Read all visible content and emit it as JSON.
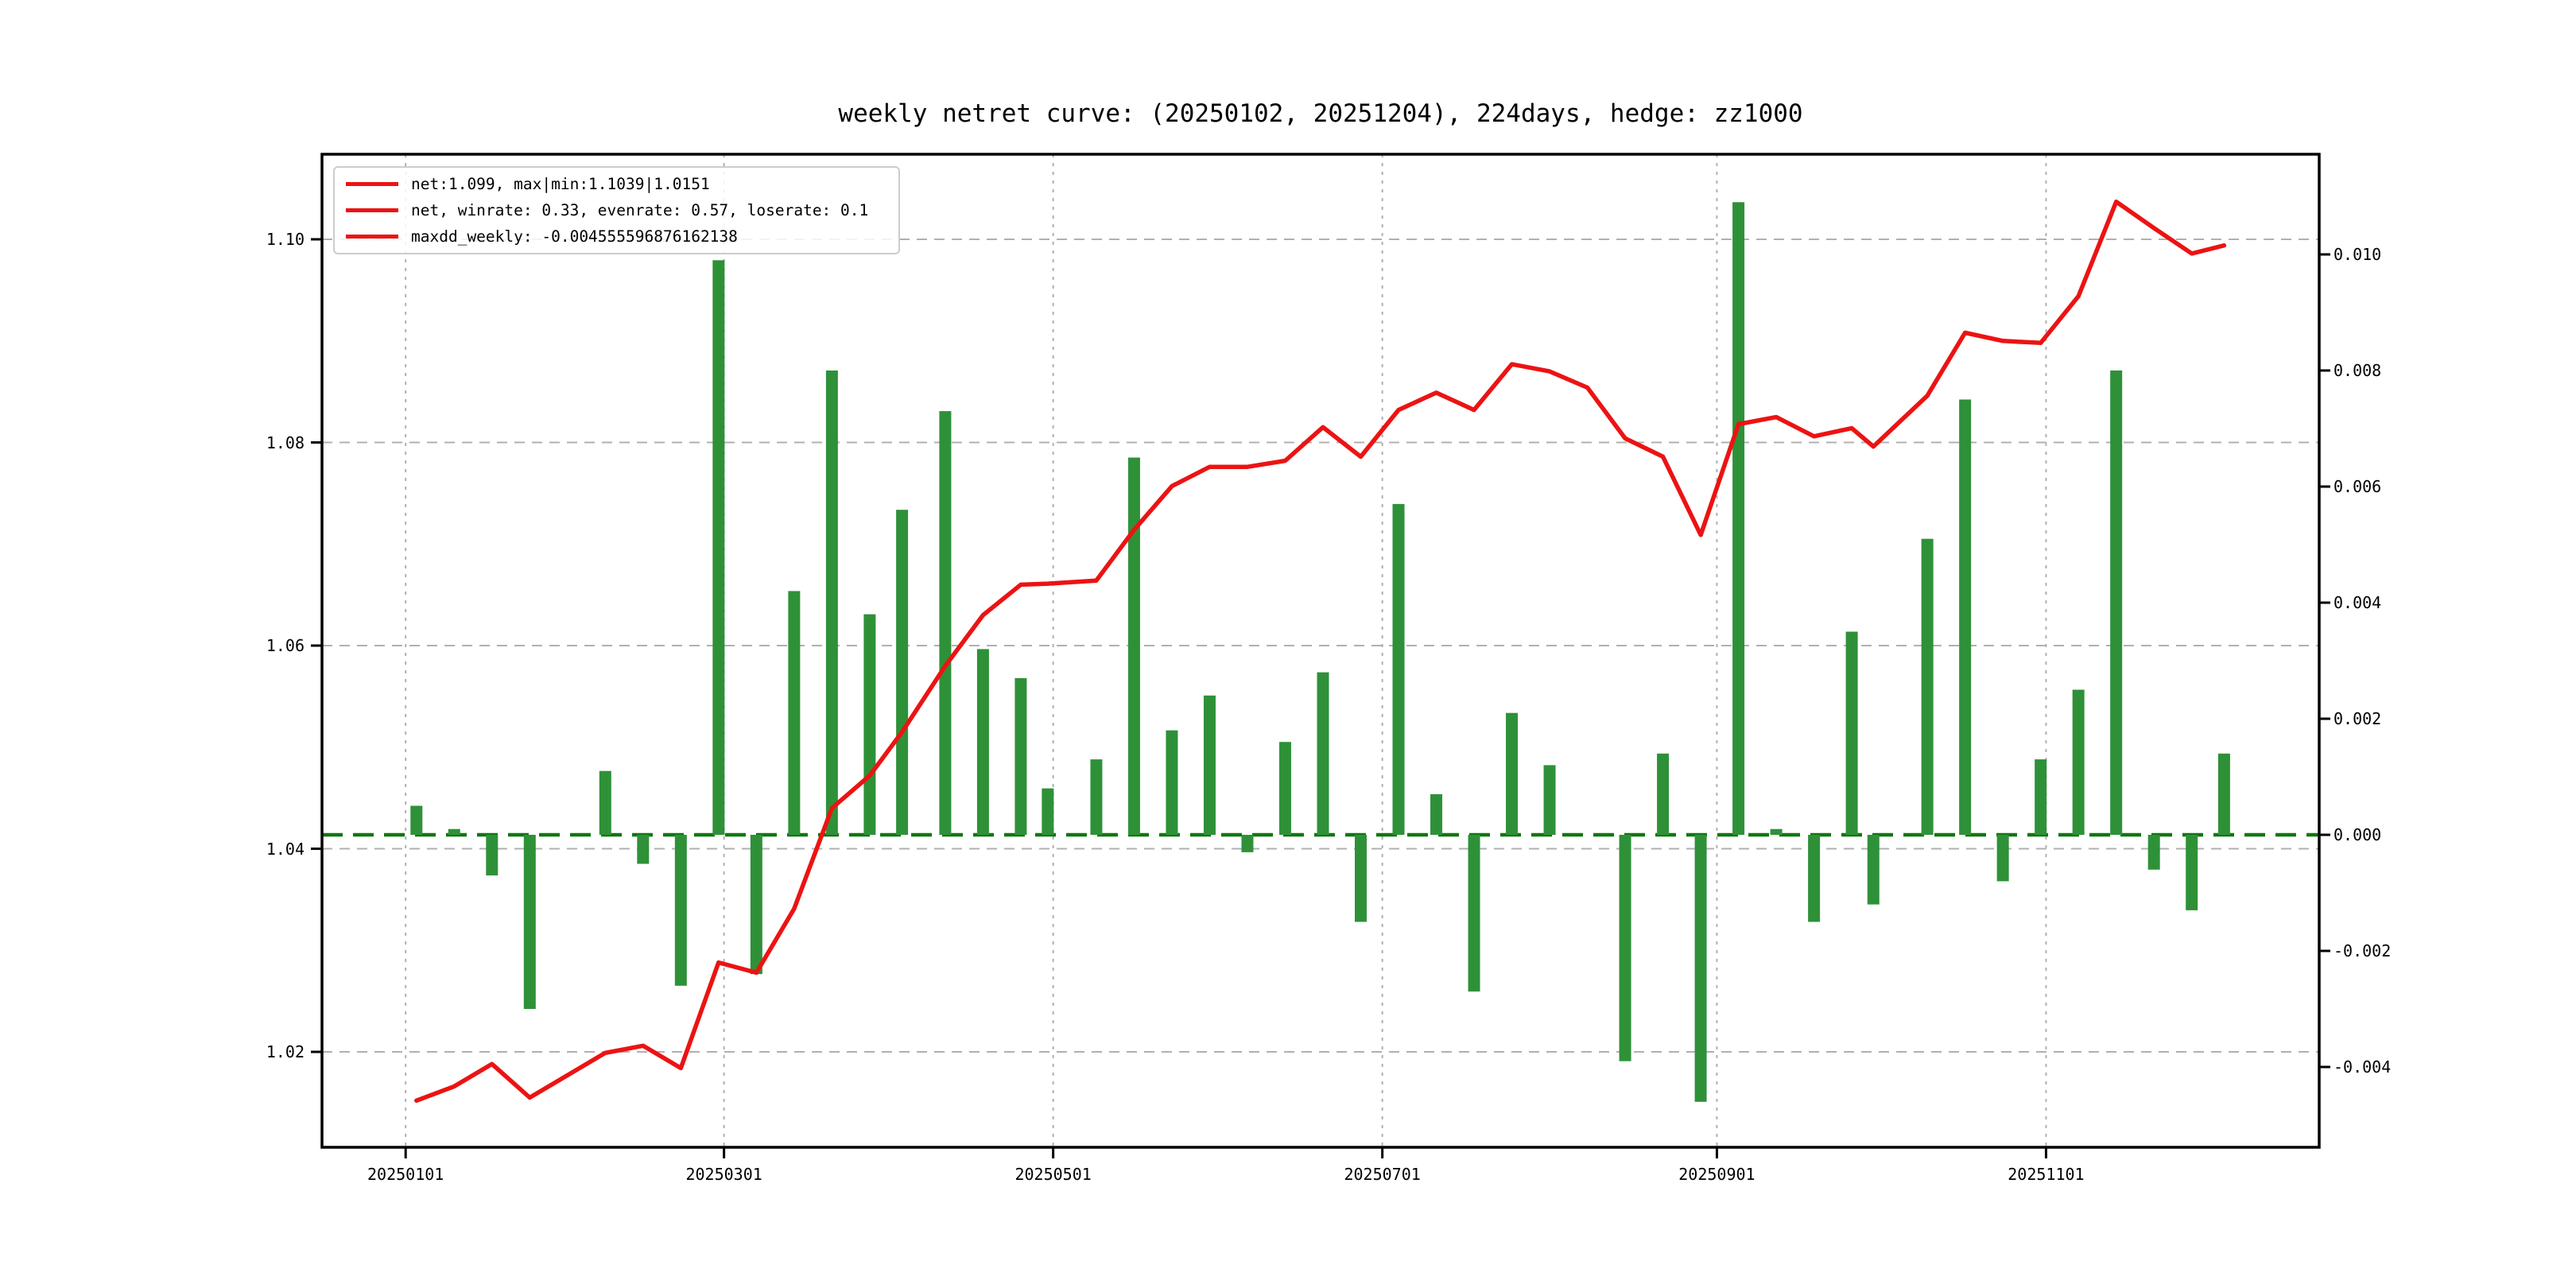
{
  "title": "weekly netret curve: (20250102, 20251204), 224days, hedge: zz1000",
  "legend": {
    "entries": [
      "net:1.099, max|min:1.1039|1.0151",
      "net, winrate: 0.33, evenrate: 0.57, loserate: 0.1",
      "maxdd_weekly: -0.004555596876162138"
    ]
  },
  "stats": {
    "net_end": 1.099,
    "net_max": 1.1039,
    "net_min": 1.0151,
    "winrate": 0.33,
    "evenrate": 0.57,
    "loserate": 0.1,
    "maxdd_weekly": -0.004555596876162138,
    "days": "224days",
    "hedge": "zz1000",
    "range_start": "20250102",
    "range_end": "20251204"
  },
  "colors": {
    "net_line": "#ec1313",
    "return_bar": "#2e9138",
    "zero_line": "#0e780e",
    "grid": "#b0b0b0",
    "spine": "#000000",
    "background": "#ffffff"
  },
  "chart_data": {
    "type": "line+bar",
    "title": "weekly netret curve: (20250102, 20251204), 224days, hedge: zz1000",
    "x": [
      "20250103",
      "20250110",
      "20250117",
      "20250124",
      "20250207",
      "20250214",
      "20250221",
      "20250228",
      "20250307",
      "20250314",
      "20250321",
      "20250328",
      "20250403",
      "20250411",
      "20250418",
      "20250425",
      "20250430",
      "20250509",
      "20250516",
      "20250523",
      "20250530",
      "20250606",
      "20250613",
      "20250620",
      "20250627",
      "20250704",
      "20250711",
      "20250718",
      "20250725",
      "20250801",
      "20250808",
      "20250815",
      "20250822",
      "20250829",
      "20250905",
      "20250912",
      "20250919",
      "20250926",
      "20250930",
      "20251010",
      "20251017",
      "20251024",
      "20251031",
      "20251107",
      "20251114",
      "20251121",
      "20251128",
      "20251204"
    ],
    "series": [
      {
        "name": "net",
        "type": "line",
        "axis": "left",
        "color_key": "net_line",
        "values": [
          1.0152,
          1.0166,
          1.0188,
          1.0155,
          1.0199,
          1.0206,
          1.0184,
          1.0288,
          1.0278,
          1.0341,
          1.044,
          1.0472,
          1.0515,
          1.058,
          1.063,
          1.066,
          1.0661,
          1.0664,
          1.0714,
          1.0757,
          1.0776,
          1.0776,
          1.0782,
          1.0815,
          1.0786,
          1.0832,
          1.0849,
          1.0832,
          1.0877,
          1.087,
          1.0854,
          1.0804,
          1.0786,
          1.0709,
          1.0818,
          1.0825,
          1.0806,
          1.0814,
          1.0796,
          1.0846,
          1.0908,
          1.09,
          1.0898,
          1.0944,
          1.1037,
          1.1011,
          1.0986,
          1.0994
        ]
      },
      {
        "name": "weekly_return",
        "type": "bar",
        "axis": "right",
        "color_key": "return_bar",
        "values": [
          0.0005,
          0.0001,
          -0.0007,
          -0.003,
          0.0011,
          -0.0005,
          -0.0026,
          0.0099,
          -0.0024,
          0.0042,
          0.008,
          0.0038,
          0.0056,
          0.0073,
          0.0032,
          0.0027,
          0.0008,
          0.0013,
          0.0065,
          0.0018,
          0.0024,
          -0.0003,
          0.0016,
          0.0028,
          -0.0015,
          0.0057,
          0.0007,
          -0.0027,
          0.0021,
          0.0012,
          0.0,
          -0.0039,
          0.0014,
          -0.0046,
          0.0109,
          0.0001,
          -0.0015,
          0.0035,
          -0.0012,
          0.0051,
          0.0075,
          -0.0008,
          0.0013,
          0.0025,
          0.008,
          -0.0006,
          -0.0013,
          0.0014
        ]
      }
    ],
    "left_axis": {
      "ticks": [
        1.02,
        1.04,
        1.06,
        1.08,
        1.1
      ],
      "labels": [
        "1.02",
        "1.04",
        "1.06",
        "1.08",
        "1.10"
      ]
    },
    "right_axis": {
      "ticks": [
        0.01,
        0.008,
        0.006,
        0.004,
        0.002,
        0.0,
        -0.002,
        -0.004
      ],
      "labels": [
        "0.010",
        "0.008",
        "0.006",
        "0.004",
        "0.002",
        "0.000",
        "-0.002",
        "-0.004"
      ]
    },
    "x_axis": {
      "tick_dates": [
        "20250101",
        "20250301",
        "20250501",
        "20250701",
        "20250901",
        "20251101"
      ],
      "labels": [
        "20250101",
        "20250301",
        "20250501",
        "20250701",
        "20250901",
        "20251101"
      ]
    },
    "zero_line_right": 0.0,
    "grid": true,
    "legend_position": "upper-left"
  }
}
